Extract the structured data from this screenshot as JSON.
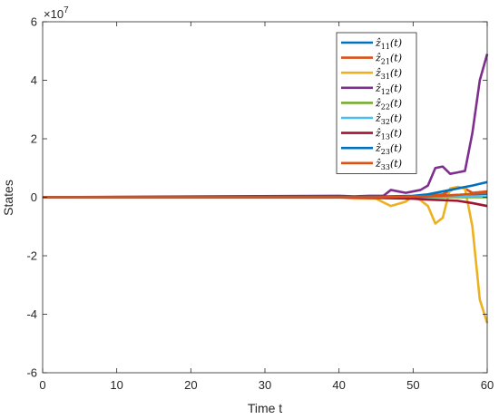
{
  "chart_data": {
    "type": "line",
    "xlabel": "Time t",
    "ylabel": "States",
    "y_exponent_label": "×10",
    "y_exponent_power": "7",
    "xlim": [
      0,
      60
    ],
    "ylim": [
      -6,
      6
    ],
    "xticks": [
      0,
      10,
      20,
      30,
      40,
      50,
      60
    ],
    "yticks": [
      -6,
      -4,
      -2,
      0,
      2,
      4,
      6
    ],
    "grid": false,
    "legend_position": "top-right",
    "series": [
      {
        "name": "ẑ11(t)",
        "color": "#0072BD",
        "x": [
          0,
          40,
          45,
          50,
          52,
          54,
          56,
          58,
          60
        ],
        "y": [
          0,
          0,
          0,
          0.02,
          0.04,
          0.06,
          0.08,
          0.1,
          0.12
        ]
      },
      {
        "name": "ẑ21(t)",
        "color": "#D95319",
        "x": [
          0,
          40,
          45,
          50,
          52,
          54,
          56,
          57,
          58,
          60
        ],
        "y": [
          0,
          0,
          0,
          -0.03,
          0.05,
          0.1,
          0.35,
          0.3,
          0.15,
          0.2
        ]
      },
      {
        "name": "ẑ31(t)",
        "color": "#EDB120",
        "x": [
          0,
          40,
          42,
          45,
          47,
          49,
          50,
          51,
          52,
          53,
          54,
          55,
          56,
          57,
          58,
          59,
          60
        ],
        "y": [
          0,
          0,
          -0.05,
          -0.05,
          -0.3,
          -0.15,
          0.05,
          -0.1,
          -0.3,
          -0.9,
          -0.7,
          0.3,
          0.35,
          0.3,
          -1.0,
          -3.5,
          -4.3
        ]
      },
      {
        "name": "ẑ12(t)",
        "color": "#7E2F8E",
        "x": [
          0,
          40,
          42,
          44,
          46,
          47,
          48,
          49,
          50,
          51,
          52,
          53,
          54,
          55,
          56,
          57,
          58,
          59,
          60
        ],
        "y": [
          0,
          0.05,
          0.03,
          0.05,
          0.05,
          0.25,
          0.2,
          0.15,
          0.2,
          0.25,
          0.4,
          1.0,
          1.05,
          0.8,
          0.85,
          0.9,
          2.2,
          4.0,
          4.9
        ]
      },
      {
        "name": "ẑ22(t)",
        "color": "#77AC30",
        "x": [
          0,
          40,
          50,
          55,
          60
        ],
        "y": [
          0,
          0,
          0,
          0,
          0
        ]
      },
      {
        "name": "ẑ32(t)",
        "color": "#4DBEEE",
        "x": [
          0,
          40,
          50,
          55,
          58,
          60
        ],
        "y": [
          0,
          0,
          0.01,
          0.02,
          0.03,
          0.03
        ]
      },
      {
        "name": "ẑ13(t)",
        "color": "#A2142F",
        "x": [
          0,
          40,
          45,
          50,
          52,
          54,
          56,
          58,
          60
        ],
        "y": [
          0,
          0,
          -0.02,
          -0.05,
          -0.08,
          -0.1,
          -0.12,
          -0.2,
          -0.3
        ]
      },
      {
        "name": "ẑ23(t)",
        "color": "#0072BD",
        "x": [
          0,
          40,
          45,
          50,
          52,
          54,
          56,
          58,
          60
        ],
        "y": [
          0,
          0,
          0.02,
          0.05,
          0.1,
          0.2,
          0.3,
          0.4,
          0.52
        ]
      },
      {
        "name": "ẑ33(t)",
        "color": "#D95319",
        "x": [
          0,
          40,
          45,
          50,
          52,
          54,
          56,
          58,
          60
        ],
        "y": [
          0,
          0,
          0,
          0.02,
          0.03,
          0.05,
          0.08,
          0.12,
          0.15
        ]
      }
    ],
    "legend_labels": [
      {
        "base": "ẑ",
        "sub": "11",
        "suffix": "(t)"
      },
      {
        "base": "ẑ",
        "sub": "21",
        "suffix": "(t)"
      },
      {
        "base": "ẑ",
        "sub": "31",
        "suffix": "(t)"
      },
      {
        "base": "ẑ",
        "sub": "12",
        "suffix": "(t)"
      },
      {
        "base": "ẑ",
        "sub": "22",
        "suffix": "(t)"
      },
      {
        "base": "ẑ",
        "sub": "32",
        "suffix": "(t)"
      },
      {
        "base": "ẑ",
        "sub": "13",
        "suffix": "(t)"
      },
      {
        "base": "ẑ",
        "sub": "23",
        "suffix": "(t)"
      },
      {
        "base": "ẑ",
        "sub": "33",
        "suffix": "(t)"
      }
    ]
  }
}
